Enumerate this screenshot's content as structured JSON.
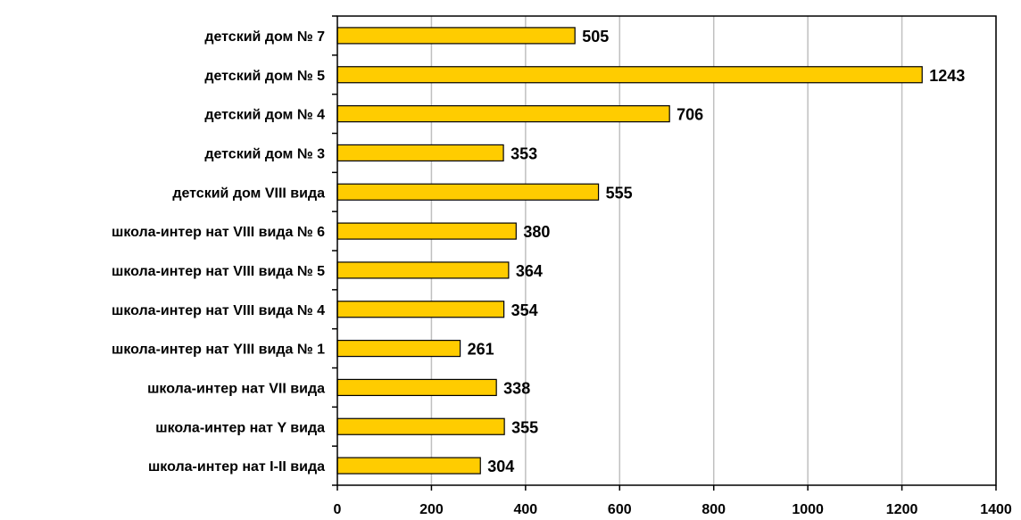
{
  "chart_data": {
    "type": "bar",
    "orientation": "horizontal",
    "categories": [
      "детский дом  № 7",
      "детский дом № 5",
      "детский дом № 4",
      "детский дом № 3",
      "детский дом VIII вида",
      "школа-интер нат VIII вида  № 6",
      "школа-интер нат VIII  вида  № 5",
      "школа-интер нат VIII вида  № 4",
      "школа-интер нат YIII вида № 1",
      "школа-интер нат VII вида",
      "школа-интер нат Y вида",
      "школа-интер нат I-II вида"
    ],
    "values": [
      505,
      1243,
      706,
      353,
      555,
      380,
      364,
      354,
      261,
      338,
      355,
      304
    ],
    "xlim": [
      0,
      1400
    ],
    "xticks": [
      0,
      200,
      400,
      600,
      800,
      1000,
      1200,
      1400
    ],
    "title": "",
    "xlabel": "",
    "ylabel": "",
    "grid": "vertical",
    "legend": "none",
    "colors": {
      "bar": "#ffcc00",
      "bar_edge": "#000000",
      "grid": "#c0c0c0"
    }
  }
}
